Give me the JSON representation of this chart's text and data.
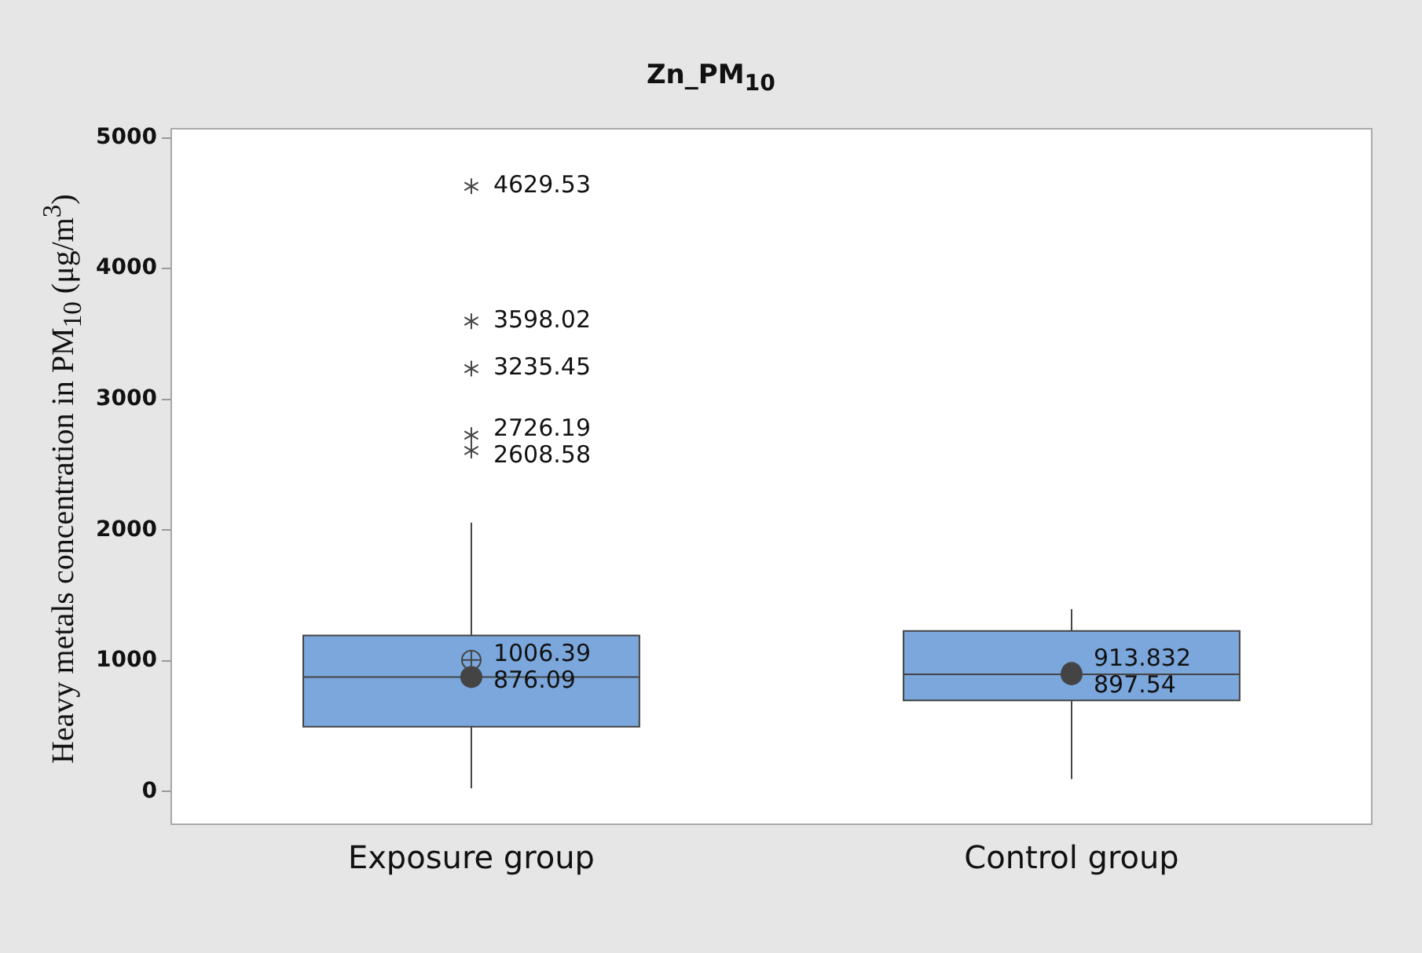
{
  "chart_data": {
    "type": "box",
    "title": "Zn_PM$_{10}$",
    "ylabel": "Heavy metals concentration in PM$_{10}$ (μg/m$^{3}$)",
    "categories": [
      "Exposure group",
      "Control group"
    ],
    "color": "#7ba7dc",
    "boxes": [
      {
        "low": 24,
        "q1": 496,
        "median": 876.09,
        "q3": 1194,
        "high": 2057,
        "mean": 1006.39,
        "outliers": [
          2608.58,
          2726.19,
          3235.45,
          3598.02,
          4629.53
        ]
      },
      {
        "low": 95,
        "q1": 697,
        "median": 897.54,
        "q3": 1229,
        "high": 1395,
        "mean": 913.832
      }
    ],
    "series": [
      {
        "type": "scatter",
        "x": [
          "Exposure group",
          "Control group"
        ],
        "values": [
          876.09,
          897.54
        ],
        "color": "#444444"
      }
    ],
    "marker": "circle",
    "ylim": [
      -250,
      5070
    ],
    "yticks": [
      0,
      1000,
      2000,
      3000,
      4000,
      5000
    ],
    "grid": false,
    "legend": false,
    "annotations": [
      "2608.58",
      "2726.19",
      "3235.45",
      "3598.02",
      "4629.53",
      "1006.39",
      "876.09",
      "913.832",
      "897.54"
    ]
  }
}
